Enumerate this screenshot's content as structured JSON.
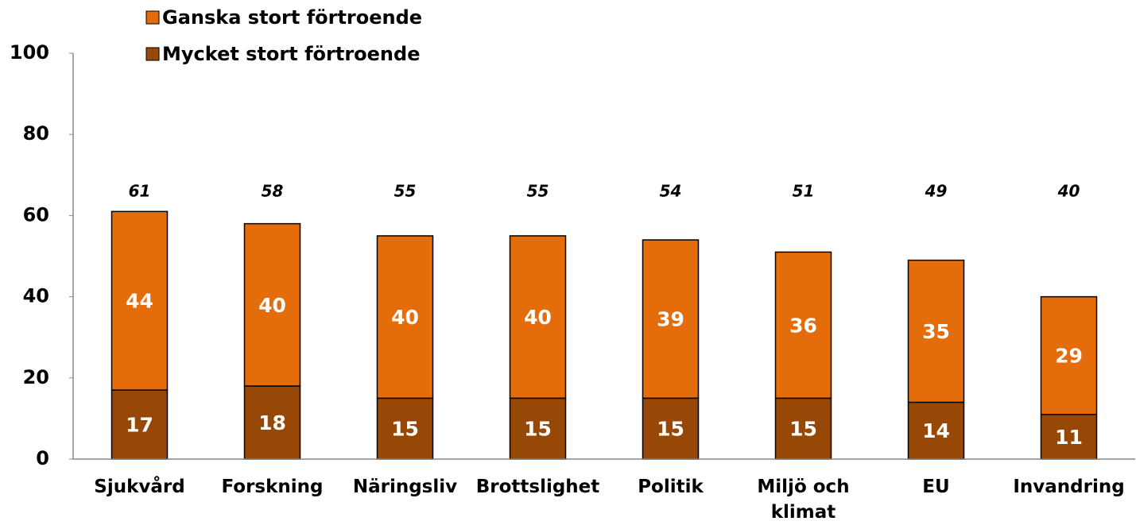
{
  "chart_data": {
    "type": "stacked_bar",
    "categories": [
      "Sjukvård",
      "Forskning",
      "Näringsliv",
      "Brottslighet",
      "Politik",
      "Miljö och klimat",
      "EU",
      "Invandring"
    ],
    "series": [
      {
        "name": "Mycket stort förtroende",
        "color": "#974806",
        "values": [
          17,
          18,
          15,
          15,
          15,
          15,
          14,
          11
        ]
      },
      {
        "name": "Ganska stort förtroende",
        "color": "#E46C0A",
        "values": [
          44,
          40,
          40,
          40,
          39,
          36,
          35,
          29
        ]
      }
    ],
    "totals": [
      61,
      58,
      55,
      55,
      54,
      51,
      49,
      40
    ],
    "ylim": [
      0,
      100
    ],
    "yticks": [
      0,
      20,
      40,
      60,
      80,
      100
    ],
    "legend": "top-left"
  }
}
